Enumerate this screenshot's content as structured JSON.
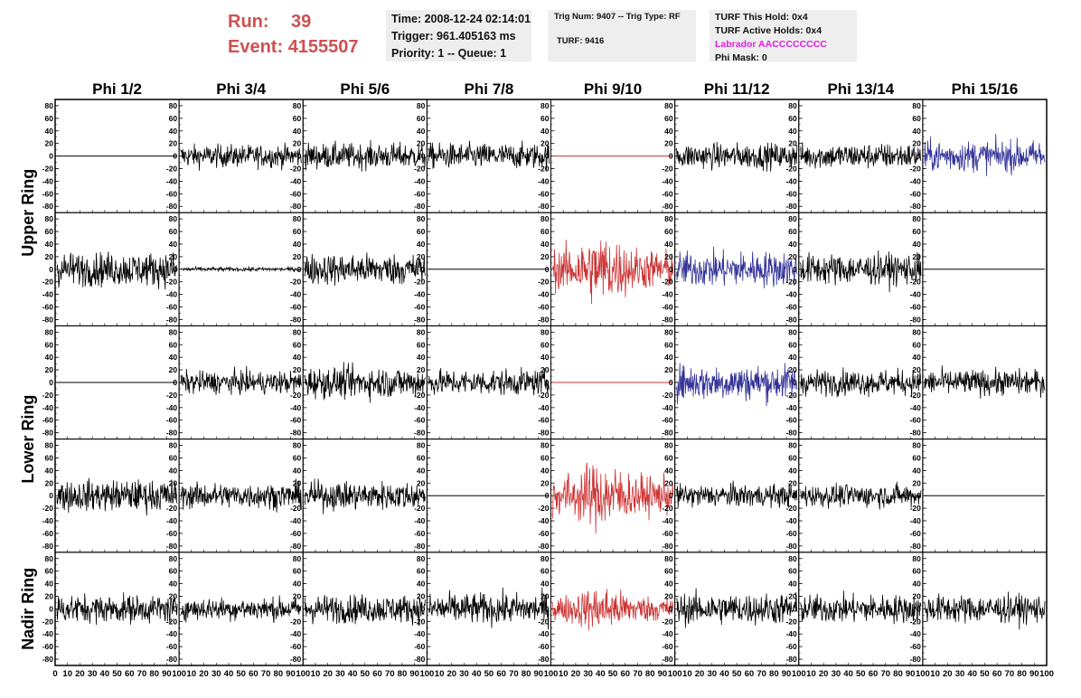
{
  "header": {
    "run_label": "Run:",
    "run_value": "39",
    "event_label": "Event:",
    "event_value": "4155507"
  },
  "info_time": {
    "time": "Time: 2008-12-24 02:14:01",
    "trigger": "Trigger: 961.405163 ms",
    "priority": "Priority: 1 -- Queue: 1"
  },
  "info_trig": {
    "trig": "Trig Num: 9407 -- Trig Type: RF",
    "turf": "TURF: 9416"
  },
  "info_turf": {
    "this_hold": "TURF This Hold: 0x4",
    "active_holds": "TURF Active Holds: 0x4",
    "labrador": "Labrador AACCCCCCCC",
    "phi_mask": "Phi Mask: 0"
  },
  "colors": {
    "black": "#000000",
    "red": "#cc3333",
    "blue": "#333399"
  },
  "chart_data": {
    "type": "line",
    "columns": [
      "Phi 1/2",
      "Phi 3/4",
      "Phi 5/6",
      "Phi 7/8",
      "Phi 9/10",
      "Phi 11/12",
      "Phi 13/14",
      "Phi 15/16"
    ],
    "ring_labels": [
      "Upper Ring",
      "Lower Ring",
      "Nadir Ring"
    ],
    "rows": 5,
    "ylim": [
      -90,
      90
    ],
    "y_ticks": [
      -80,
      -60,
      -40,
      -20,
      0,
      20,
      40,
      60,
      80
    ],
    "xlim": [
      0,
      100
    ],
    "x_tick_labels": [
      "0",
      "10",
      "20",
      "30",
      "40",
      "50",
      "60",
      "70",
      "80",
      "90",
      "100"
    ],
    "panels": [
      [
        {
          "amp": 0,
          "color": "black"
        },
        {
          "amp": 16,
          "color": "black"
        },
        {
          "amp": 18,
          "color": "black"
        },
        {
          "amp": 18,
          "color": "black"
        },
        {
          "amp": 0,
          "color": "red"
        },
        {
          "amp": 18,
          "color": "black"
        },
        {
          "amp": 18,
          "color": "black"
        },
        {
          "amp": 22,
          "color": "blue"
        }
      ],
      [
        {
          "amp": 24,
          "color": "black"
        },
        {
          "amp": 3,
          "color": "black"
        },
        {
          "amp": 22,
          "color": "black"
        },
        {
          "amp": 0,
          "color": "black"
        },
        {
          "amp": 50,
          "color": "red"
        },
        {
          "amp": 25,
          "color": "blue"
        },
        {
          "amp": 22,
          "color": "black"
        },
        {
          "amp": 0,
          "color": "black"
        }
      ],
      [
        {
          "amp": 0,
          "color": "black"
        },
        {
          "amp": 16,
          "color": "black"
        },
        {
          "amp": 22,
          "color": "black"
        },
        {
          "amp": 18,
          "color": "black"
        },
        {
          "amp": 0,
          "color": "red"
        },
        {
          "amp": 25,
          "color": "blue"
        },
        {
          "amp": 18,
          "color": "black"
        },
        {
          "amp": 18,
          "color": "black"
        }
      ],
      [
        {
          "amp": 22,
          "color": "black"
        },
        {
          "amp": 18,
          "color": "black"
        },
        {
          "amp": 20,
          "color": "black"
        },
        {
          "amp": 0,
          "color": "black"
        },
        {
          "amp": 48,
          "color": "red"
        },
        {
          "amp": 16,
          "color": "black"
        },
        {
          "amp": 16,
          "color": "black"
        },
        {
          "amp": 0,
          "color": "black"
        }
      ],
      [
        {
          "amp": 20,
          "color": "black"
        },
        {
          "amp": 16,
          "color": "black"
        },
        {
          "amp": 20,
          "color": "black"
        },
        {
          "amp": 22,
          "color": "black"
        },
        {
          "amp": 32,
          "color": "red"
        },
        {
          "amp": 22,
          "color": "black"
        },
        {
          "amp": 20,
          "color": "black"
        },
        {
          "amp": 20,
          "color": "black"
        }
      ]
    ]
  }
}
